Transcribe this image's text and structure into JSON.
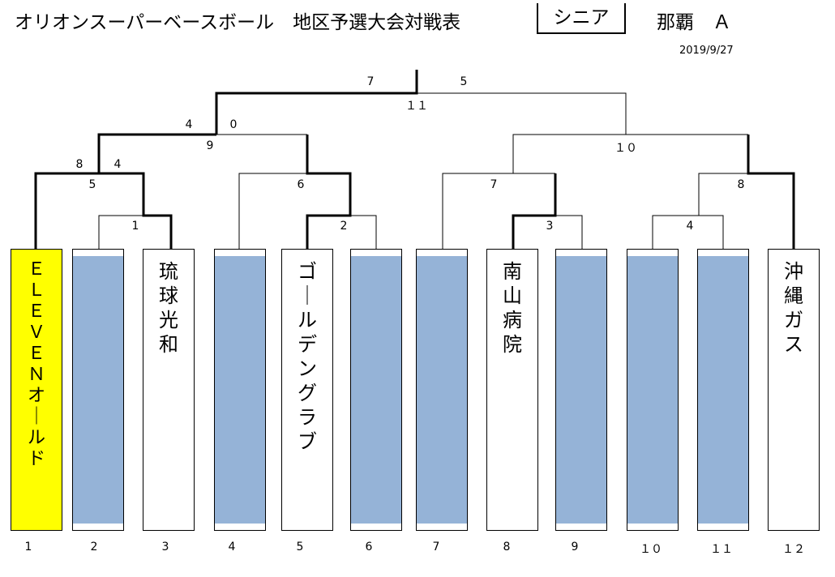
{
  "header": {
    "title": "オリオンスーパーベースボール　地区予選大会対戦表",
    "division": "シニア",
    "region": "那覇　Ａ",
    "date": "2019/9/27"
  },
  "slots": [
    {
      "number": "1",
      "team": "ＥＬＥＶＥＮオールド",
      "state": "highlight"
    },
    {
      "number": "2",
      "team": "",
      "state": "empty"
    },
    {
      "number": "3",
      "team": "琉球光和",
      "state": "team"
    },
    {
      "number": "4",
      "team": "",
      "state": "empty"
    },
    {
      "number": "5",
      "team": "ゴールデングラブ",
      "state": "team"
    },
    {
      "number": "6",
      "team": "",
      "state": "empty"
    },
    {
      "number": "7",
      "team": "",
      "state": "empty"
    },
    {
      "number": "8",
      "team": "南山病院",
      "state": "team"
    },
    {
      "number": "9",
      "team": "",
      "state": "empty"
    },
    {
      "number": "１０",
      "team": "",
      "state": "empty"
    },
    {
      "number": "１１",
      "team": "",
      "state": "empty"
    },
    {
      "number": "１２",
      "team": "沖縄ガス",
      "state": "team"
    }
  ],
  "matches": [
    {
      "id": "1",
      "label": "1"
    },
    {
      "id": "2",
      "label": "2"
    },
    {
      "id": "3",
      "label": "3"
    },
    {
      "id": "4",
      "label": "4"
    },
    {
      "id": "5",
      "label": "5",
      "score_left": "8",
      "score_right": "4"
    },
    {
      "id": "6",
      "label": "6"
    },
    {
      "id": "7",
      "label": "7"
    },
    {
      "id": "8",
      "label": "8"
    },
    {
      "id": "9",
      "label": "9",
      "score_left": "4",
      "score_right": "0"
    },
    {
      "id": "10",
      "label": "１０"
    },
    {
      "id": "11",
      "label": "１１",
      "score_left": "7",
      "score_right": "5"
    }
  ]
}
